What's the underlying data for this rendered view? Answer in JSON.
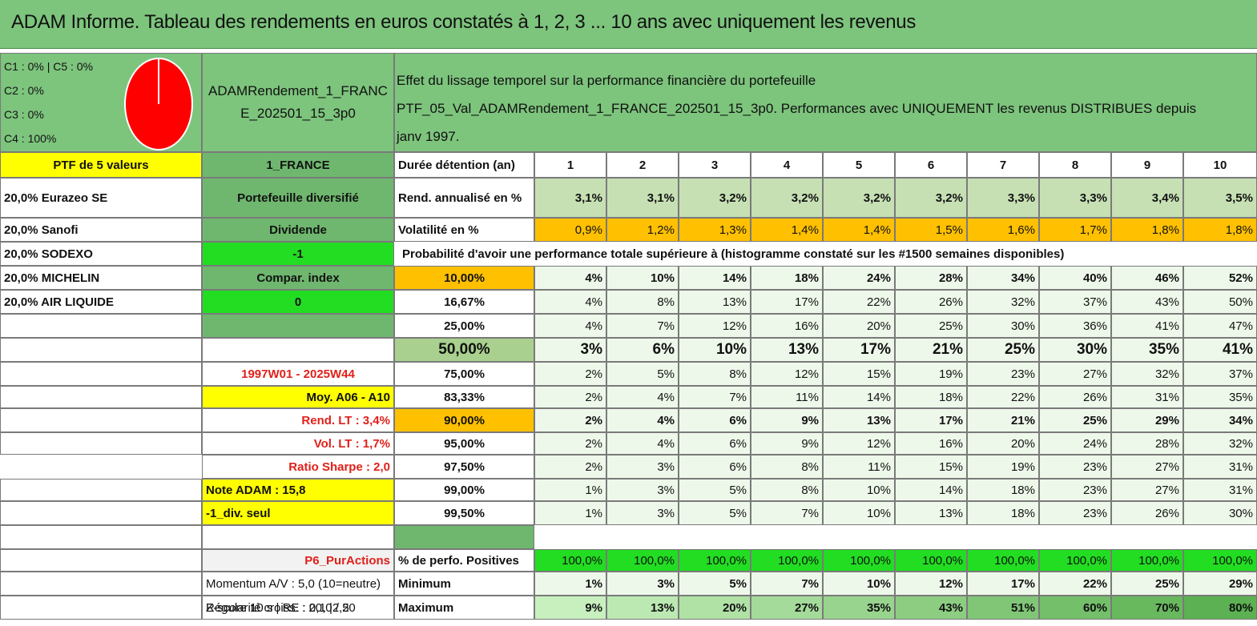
{
  "header": {
    "title": "ADAM Informe. Tableau des rendements en euros constatés à 1, 2, 3 ... 10 ans avec uniquement les revenus"
  },
  "left_panel": {
    "legend": [
      "C1 : 0% | C5 : 0%",
      "C2 : 0%",
      "C3 : 0%",
      "C4 : 100%"
    ],
    "pie": {
      "values": [
        0,
        0,
        0,
        100,
        0
      ],
      "colors": [
        "#e8e8e8",
        "#e8e8e8",
        "#e8e8e8",
        "#ff0000",
        "#e8e8e8"
      ]
    },
    "ptf_label": "PTF de 5 valeurs",
    "holdings": [
      "20,0% Eurazeo SE",
      "20,0% Sanofi",
      "20,0% SODEXO",
      "20,0% MICHELIN",
      "20,0% AIR LIQUIDE"
    ]
  },
  "middle_panel": {
    "title": "ADAMRendement_1_FRANCE_202501_15_3p0",
    "country": "1_FRANCE",
    "portfolio_type": "Portefeuille diversifié",
    "dividend_label": "Dividende",
    "sodexo_value": "-1",
    "compar_index": "Compar. index",
    "compar_value": "0",
    "period": "1997W01 - 2025W44",
    "moy": "Moy. A06 - A10",
    "rend_lt": "Rend. LT : 3,4%",
    "vol_lt": "Vol. LT : 1,7%",
    "sharpe": "Ratio Sharpe : 2,0",
    "note": "Note ADAM : 15,8",
    "div_seul": "-1_div. seul",
    "p6": "P6_PurActions",
    "momentum": "Momentum A/V : 5,0 (10=neutre)",
    "zscore": "Z-score 10 s | RE : 0,1 |2,5",
    "regularite": "Régularité croiss. : 20,0 / 20"
  },
  "description": {
    "lines": [
      "Effet du lissage temporel sur la performance financière du portefeuille",
      "PTF_05_Val_ADAMRendement_1_FRANCE_202501_15_3p0. Performances avec UNIQUEMENT les revenus DISTRIBUES depuis",
      "janv 1997."
    ]
  },
  "table": {
    "duration_label": "Durée détention (an)",
    "years": [
      "1",
      "2",
      "3",
      "4",
      "5",
      "6",
      "7",
      "8",
      "9",
      "10"
    ],
    "rend_label": "Rend. annualisé en %",
    "rend": [
      "3,1%",
      "3,1%",
      "3,2%",
      "3,2%",
      "3,2%",
      "3,2%",
      "3,3%",
      "3,3%",
      "3,4%",
      "3,5%"
    ],
    "vol_label": "Volatilité en %",
    "vol": [
      "0,9%",
      "1,2%",
      "1,3%",
      "1,4%",
      "1,4%",
      "1,5%",
      "1,6%",
      "1,7%",
      "1,8%",
      "1,8%"
    ],
    "prob_title": "Probabilité d'avoir une performance totale supérieure à (histogramme constaté sur les #1500 semaines disponibles)",
    "prob_rows": [
      {
        "label": "10,00%",
        "values": [
          "4%",
          "10%",
          "14%",
          "18%",
          "24%",
          "28%",
          "34%",
          "40%",
          "46%",
          "52%"
        ]
      },
      {
        "label": "16,67%",
        "values": [
          "4%",
          "8%",
          "13%",
          "17%",
          "22%",
          "26%",
          "32%",
          "37%",
          "43%",
          "50%"
        ]
      },
      {
        "label": "25,00%",
        "values": [
          "4%",
          "7%",
          "12%",
          "16%",
          "20%",
          "25%",
          "30%",
          "36%",
          "41%",
          "47%"
        ]
      },
      {
        "label": "50,00%",
        "values": [
          "3%",
          "6%",
          "10%",
          "13%",
          "17%",
          "21%",
          "25%",
          "30%",
          "35%",
          "41%"
        ]
      },
      {
        "label": "75,00%",
        "values": [
          "2%",
          "5%",
          "8%",
          "12%",
          "15%",
          "19%",
          "23%",
          "27%",
          "32%",
          "37%"
        ]
      },
      {
        "label": "83,33%",
        "values": [
          "2%",
          "4%",
          "7%",
          "11%",
          "14%",
          "18%",
          "22%",
          "26%",
          "31%",
          "35%"
        ]
      },
      {
        "label": "90,00%",
        "values": [
          "2%",
          "4%",
          "6%",
          "9%",
          "13%",
          "17%",
          "21%",
          "25%",
          "29%",
          "34%"
        ]
      },
      {
        "label": "95,00%",
        "values": [
          "2%",
          "4%",
          "6%",
          "9%",
          "12%",
          "16%",
          "20%",
          "24%",
          "28%",
          "32%"
        ]
      },
      {
        "label": "97,50%",
        "values": [
          "2%",
          "3%",
          "6%",
          "8%",
          "11%",
          "15%",
          "19%",
          "23%",
          "27%",
          "31%"
        ]
      },
      {
        "label": "99,00%",
        "values": [
          "1%",
          "3%",
          "5%",
          "8%",
          "10%",
          "14%",
          "18%",
          "23%",
          "27%",
          "31%"
        ]
      },
      {
        "label": "99,50%",
        "values": [
          "1%",
          "3%",
          "5%",
          "7%",
          "10%",
          "13%",
          "18%",
          "23%",
          "26%",
          "30%"
        ]
      }
    ],
    "pos_label": "% de perfo. Positives",
    "pos": [
      "100,0%",
      "100,0%",
      "100,0%",
      "100,0%",
      "100,0%",
      "100,0%",
      "100,0%",
      "100,0%",
      "100,0%",
      "100,0%"
    ],
    "min_label": "Minimum",
    "min": [
      "1%",
      "3%",
      "5%",
      "7%",
      "10%",
      "12%",
      "17%",
      "22%",
      "25%",
      "29%"
    ],
    "max_label": "Maximum",
    "max": [
      "9%",
      "13%",
      "20%",
      "27%",
      "35%",
      "43%",
      "51%",
      "60%",
      "70%",
      "80%"
    ]
  },
  "colors": {
    "header_green": "#7dc47d",
    "mid_green": "#6fb76f",
    "yellow": "#ffff00",
    "bright_green": "#22dd22",
    "orange": "#ffc000",
    "red_text": "#e0201a",
    "pale_green": "#eef8ea"
  }
}
